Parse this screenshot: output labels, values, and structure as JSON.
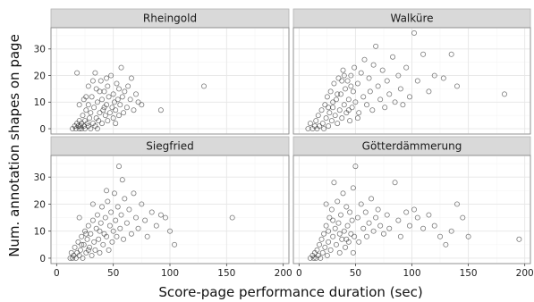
{
  "chart_data": {
    "type": "scatter",
    "xlabel": "Score-page performance duration (sec)",
    "ylabel": "Num. annotation shapes on page",
    "xlim": [
      -5,
      205
    ],
    "ylim": [
      -2,
      38
    ],
    "x_ticks": [
      0,
      50,
      100,
      150,
      200
    ],
    "y_ticks": [
      0,
      10,
      20,
      30
    ],
    "x_tick_labels": [
      "0",
      "50",
      "100",
      "150",
      "200"
    ],
    "y_tick_labels": [
      "0",
      "10",
      "20",
      "30"
    ],
    "grid": true,
    "marker": "open-circle",
    "panels": [
      {
        "name": "Rheingold",
        "points": [
          [
            14,
            0
          ],
          [
            16,
            1
          ],
          [
            17,
            0
          ],
          [
            18,
            2
          ],
          [
            19,
            1
          ],
          [
            20,
            0
          ],
          [
            20,
            3
          ],
          [
            21,
            1
          ],
          [
            22,
            0
          ],
          [
            22,
            2
          ],
          [
            23,
            5
          ],
          [
            24,
            1
          ],
          [
            25,
            0
          ],
          [
            25,
            3
          ],
          [
            26,
            7
          ],
          [
            27,
            2
          ],
          [
            28,
            1
          ],
          [
            28,
            9
          ],
          [
            29,
            4
          ],
          [
            30,
            0
          ],
          [
            30,
            6
          ],
          [
            31,
            12
          ],
          [
            32,
            2
          ],
          [
            33,
            8
          ],
          [
            34,
            1
          ],
          [
            35,
            15
          ],
          [
            35,
            4
          ],
          [
            36,
            10
          ],
          [
            37,
            3
          ],
          [
            38,
            6
          ],
          [
            39,
            18
          ],
          [
            40,
            2
          ],
          [
            40,
            11
          ],
          [
            41,
            7
          ],
          [
            42,
            14
          ],
          [
            43,
            5
          ],
          [
            44,
            9
          ],
          [
            45,
            3
          ],
          [
            45,
            16
          ],
          [
            46,
            12
          ],
          [
            47,
            6
          ],
          [
            48,
            20
          ],
          [
            49,
            8
          ],
          [
            50,
            4
          ],
          [
            50,
            13
          ],
          [
            51,
            10
          ],
          [
            52,
            7
          ],
          [
            53,
            17
          ],
          [
            54,
            11
          ],
          [
            55,
            5
          ],
          [
            55,
            15
          ],
          [
            56,
            9
          ],
          [
            57,
            23
          ],
          [
            58,
            12
          ],
          [
            59,
            6
          ],
          [
            60,
            14
          ],
          [
            62,
            8
          ],
          [
            63,
            16
          ],
          [
            65,
            11
          ],
          [
            66,
            19
          ],
          [
            68,
            7
          ],
          [
            70,
            13
          ],
          [
            72,
            10
          ],
          [
            75,
            9
          ],
          [
            92,
            7
          ],
          [
            130,
            16
          ],
          [
            18,
            21
          ],
          [
            26,
            12
          ],
          [
            32,
            18
          ],
          [
            38,
            14
          ],
          [
            44,
            19
          ],
          [
            28,
            16
          ],
          [
            20,
            9
          ],
          [
            24,
            11
          ],
          [
            34,
            21
          ],
          [
            42,
            8
          ],
          [
            52,
            2
          ],
          [
            36,
            0
          ]
        ]
      },
      {
        "name": "Walküre",
        "points": [
          [
            8,
            0
          ],
          [
            10,
            2
          ],
          [
            12,
            0
          ],
          [
            14,
            1
          ],
          [
            15,
            3
          ],
          [
            16,
            0
          ],
          [
            17,
            5
          ],
          [
            18,
            1
          ],
          [
            20,
            7
          ],
          [
            21,
            2
          ],
          [
            22,
            0
          ],
          [
            23,
            9
          ],
          [
            24,
            4
          ],
          [
            25,
            12
          ],
          [
            26,
            1
          ],
          [
            27,
            6
          ],
          [
            28,
            14
          ],
          [
            29,
            3
          ],
          [
            30,
            8
          ],
          [
            31,
            17
          ],
          [
            32,
            5
          ],
          [
            33,
            11
          ],
          [
            34,
            2
          ],
          [
            35,
            19
          ],
          [
            36,
            7
          ],
          [
            37,
            13
          ],
          [
            38,
            4
          ],
          [
            39,
            22
          ],
          [
            40,
            9
          ],
          [
            41,
            15
          ],
          [
            42,
            6
          ],
          [
            43,
            18
          ],
          [
            44,
            11
          ],
          [
            45,
            3
          ],
          [
            46,
            20
          ],
          [
            47,
            8
          ],
          [
            48,
            14
          ],
          [
            49,
            23
          ],
          [
            50,
            10
          ],
          [
            52,
            17
          ],
          [
            53,
            6
          ],
          [
            55,
            21
          ],
          [
            57,
            12
          ],
          [
            58,
            26
          ],
          [
            60,
            9
          ],
          [
            62,
            19
          ],
          [
            63,
            14
          ],
          [
            65,
            7
          ],
          [
            66,
            24
          ],
          [
            68,
            31
          ],
          [
            70,
            16
          ],
          [
            72,
            11
          ],
          [
            74,
            22
          ],
          [
            76,
            8
          ],
          [
            78,
            18
          ],
          [
            80,
            13
          ],
          [
            83,
            27
          ],
          [
            85,
            10
          ],
          [
            88,
            20
          ],
          [
            90,
            15
          ],
          [
            92,
            9
          ],
          [
            95,
            23
          ],
          [
            98,
            12
          ],
          [
            102,
            36
          ],
          [
            105,
            18
          ],
          [
            110,
            28
          ],
          [
            115,
            14
          ],
          [
            120,
            20
          ],
          [
            128,
            19
          ],
          [
            135,
            28
          ],
          [
            140,
            16
          ],
          [
            182,
            13
          ],
          [
            26,
            8
          ],
          [
            34,
            13
          ],
          [
            40,
            20
          ],
          [
            46,
            16
          ],
          [
            52,
            4
          ],
          [
            30,
            10
          ],
          [
            38,
            18
          ],
          [
            44,
            7
          ]
        ]
      },
      {
        "name": "Siegfried",
        "points": [
          [
            12,
            0
          ],
          [
            13,
            2
          ],
          [
            14,
            0
          ],
          [
            15,
            1
          ],
          [
            16,
            4
          ],
          [
            17,
            0
          ],
          [
            18,
            2
          ],
          [
            19,
            6
          ],
          [
            20,
            1
          ],
          [
            21,
            3
          ],
          [
            22,
            8
          ],
          [
            23,
            0
          ],
          [
            24,
            5
          ],
          [
            25,
            10
          ],
          [
            26,
            2
          ],
          [
            27,
            7
          ],
          [
            28,
            12
          ],
          [
            29,
            4
          ],
          [
            30,
            9
          ],
          [
            31,
            1
          ],
          [
            32,
            14
          ],
          [
            33,
            6
          ],
          [
            34,
            3
          ],
          [
            35,
            11
          ],
          [
            36,
            16
          ],
          [
            37,
            7
          ],
          [
            38,
            2
          ],
          [
            39,
            13
          ],
          [
            40,
            19
          ],
          [
            41,
            5
          ],
          [
            42,
            9
          ],
          [
            43,
            15
          ],
          [
            44,
            8
          ],
          [
            45,
            21
          ],
          [
            46,
            3
          ],
          [
            47,
            12
          ],
          [
            48,
            17
          ],
          [
            49,
            6
          ],
          [
            50,
            10
          ],
          [
            51,
            24
          ],
          [
            52,
            14
          ],
          [
            53,
            8
          ],
          [
            54,
            19
          ],
          [
            55,
            34
          ],
          [
            56,
            11
          ],
          [
            57,
            16
          ],
          [
            58,
            29
          ],
          [
            59,
            7
          ],
          [
            60,
            22
          ],
          [
            62,
            13
          ],
          [
            64,
            18
          ],
          [
            66,
            9
          ],
          [
            68,
            24
          ],
          [
            70,
            15
          ],
          [
            72,
            11
          ],
          [
            75,
            20
          ],
          [
            78,
            14
          ],
          [
            80,
            8
          ],
          [
            84,
            17
          ],
          [
            88,
            12
          ],
          [
            92,
            16
          ],
          [
            96,
            15
          ],
          [
            100,
            10
          ],
          [
            104,
            5
          ],
          [
            155,
            15
          ],
          [
            20,
            15
          ],
          [
            26,
            9
          ],
          [
            32,
            20
          ],
          [
            38,
            10
          ],
          [
            44,
            25
          ],
          [
            22,
            5
          ],
          [
            28,
            3
          ]
        ]
      },
      {
        "name": "Götterdämmerung",
        "points": [
          [
            10,
            0
          ],
          [
            12,
            1
          ],
          [
            13,
            0
          ],
          [
            14,
            2
          ],
          [
            15,
            0
          ],
          [
            16,
            3
          ],
          [
            17,
            1
          ],
          [
            18,
            5
          ],
          [
            19,
            0
          ],
          [
            20,
            7
          ],
          [
            21,
            2
          ],
          [
            22,
            9
          ],
          [
            23,
            4
          ],
          [
            24,
            12
          ],
          [
            25,
            1
          ],
          [
            26,
            6
          ],
          [
            27,
            15
          ],
          [
            28,
            3
          ],
          [
            29,
            18
          ],
          [
            30,
            8
          ],
          [
            31,
            28
          ],
          [
            32,
            11
          ],
          [
            33,
            5
          ],
          [
            34,
            21
          ],
          [
            35,
            13
          ],
          [
            36,
            2
          ],
          [
            37,
            16
          ],
          [
            38,
            7
          ],
          [
            39,
            24
          ],
          [
            40,
            10
          ],
          [
            41,
            4
          ],
          [
            42,
            19
          ],
          [
            43,
            12
          ],
          [
            44,
            6
          ],
          [
            45,
            17
          ],
          [
            46,
            9
          ],
          [
            47,
            14
          ],
          [
            48,
            26
          ],
          [
            49,
            8
          ],
          [
            50,
            34
          ],
          [
            52,
            15
          ],
          [
            53,
            6
          ],
          [
            55,
            20
          ],
          [
            57,
            11
          ],
          [
            59,
            17
          ],
          [
            60,
            8
          ],
          [
            62,
            13
          ],
          [
            64,
            22
          ],
          [
            66,
            10
          ],
          [
            68,
            15
          ],
          [
            70,
            18
          ],
          [
            72,
            12
          ],
          [
            75,
            9
          ],
          [
            78,
            16
          ],
          [
            80,
            11
          ],
          [
            85,
            28
          ],
          [
            88,
            14
          ],
          [
            90,
            8
          ],
          [
            95,
            17
          ],
          [
            98,
            12
          ],
          [
            102,
            18
          ],
          [
            105,
            15
          ],
          [
            110,
            11
          ],
          [
            115,
            16
          ],
          [
            120,
            12
          ],
          [
            125,
            8
          ],
          [
            130,
            5
          ],
          [
            135,
            10
          ],
          [
            140,
            20
          ],
          [
            145,
            15
          ],
          [
            150,
            8
          ],
          [
            195,
            7
          ],
          [
            24,
            20
          ],
          [
            30,
            14
          ],
          [
            36,
            9
          ],
          [
            42,
            7
          ],
          [
            48,
            2
          ],
          [
            26,
            10
          ]
        ]
      }
    ]
  }
}
